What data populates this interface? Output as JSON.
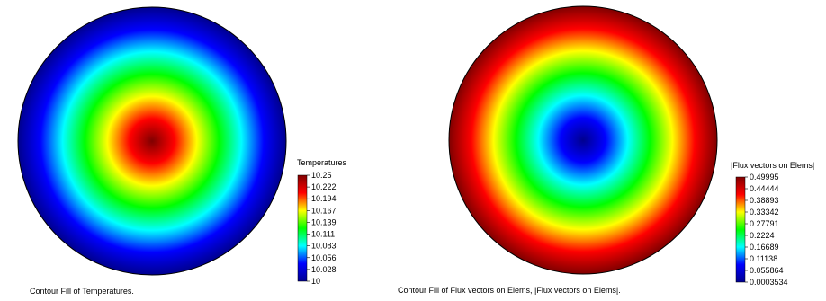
{
  "chart_data": [
    {
      "type": "heatmap",
      "shape": "circle",
      "pattern": "radial",
      "center_value": "max",
      "title": "Contour Fill of Temperatures.",
      "legend_title": "Temperatures",
      "range": [
        10,
        10.25
      ],
      "tick_labels": [
        "10.25",
        "10.222",
        "10.194",
        "10.167",
        "10.139",
        "10.111",
        "10.083",
        "10.056",
        "10.028",
        "10"
      ]
    },
    {
      "type": "heatmap",
      "shape": "circle",
      "pattern": "radial",
      "center_value": "min",
      "title": "Contour Fill of Flux vectors on Elems, |Flux vectors on Elems|.",
      "legend_title": "|Flux vectors on Elems|",
      "range": [
        0.0003534,
        0.49995
      ],
      "tick_labels": [
        "0.49995",
        "0.44444",
        "0.38893",
        "0.33342",
        "0.27791",
        "0.2224",
        "0.16689",
        "0.11138",
        "0.055864",
        "0.0003534"
      ]
    }
  ],
  "colors": {
    "jet": [
      "#00008f",
      "#0000ff",
      "#00ffff",
      "#00ff00",
      "#ffff00",
      "#ff0000",
      "#800000"
    ],
    "outline": "#000000"
  }
}
